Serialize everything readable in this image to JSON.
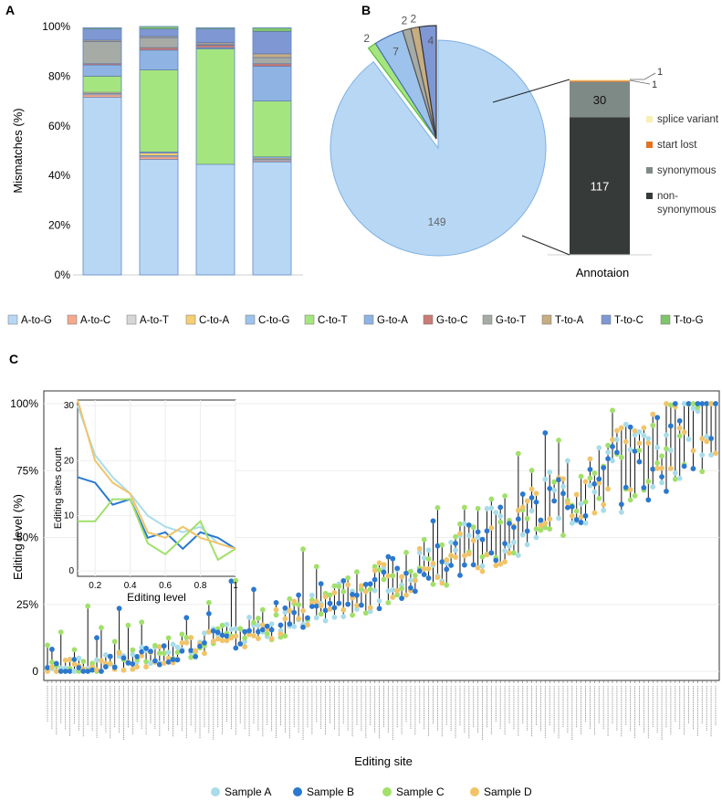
{
  "chart_data": [
    {
      "panel": "A",
      "type": "bar",
      "stacked": true,
      "ylabel": "Mismatches (%)",
      "ytick_labels": [
        "0%",
        "20%",
        "40%",
        "60%",
        "80%",
        "100%"
      ],
      "ylim": [
        0,
        100
      ],
      "categories": [
        "",
        "",
        "",
        ""
      ],
      "legend": {
        "placement": "bottom"
      },
      "series": [
        {
          "name": "A-to-G",
          "color": "#b7d7f4",
          "values": [
            71.5,
            46.5,
            44.5,
            45.5
          ]
        },
        {
          "name": "A-to-C",
          "color": "#f4a98d",
          "values": [
            1.0,
            1.0,
            0.0,
            0.5
          ]
        },
        {
          "name": "A-to-T",
          "color": "#d6d6d6",
          "values": [
            0.5,
            0.5,
            0.0,
            0.5
          ]
        },
        {
          "name": "C-to-A",
          "color": "#f5cf72",
          "values": [
            0.5,
            1.0,
            0.0,
            0.5
          ]
        },
        {
          "name": "C-to-G",
          "color": "#9dc3ec",
          "values": [
            0.0,
            0.5,
            0.0,
            0.5
          ]
        },
        {
          "name": "C-to-T",
          "color": "#a5e57f",
          "values": [
            6.5,
            33.0,
            46.5,
            22.5
          ]
        },
        {
          "name": "G-to-A",
          "color": "#8fb4e4",
          "values": [
            4.5,
            8.0,
            0.5,
            14.0
          ]
        },
        {
          "name": "G-to-C",
          "color": "#c97c76",
          "values": [
            0.5,
            1.0,
            1.0,
            1.0
          ]
        },
        {
          "name": "G-to-T",
          "color": "#a6aba6",
          "values": [
            9.0,
            4.0,
            0.5,
            2.5
          ]
        },
        {
          "name": "T-to-A",
          "color": "#c6ad82",
          "values": [
            0.5,
            0.5,
            0.5,
            1.5
          ]
        },
        {
          "name": "T-to-C",
          "color": "#7f98d4",
          "values": [
            4.5,
            3.0,
            5.5,
            9.0
          ]
        },
        {
          "name": "T-to-G",
          "color": "#80c56b",
          "values": [
            0.5,
            1.0,
            0.5,
            1.5
          ]
        }
      ]
    },
    {
      "panel": "B",
      "type": "pie",
      "slices": [
        {
          "label": "149",
          "value": 149,
          "color": "#b7d7f4"
        },
        {
          "label": "2",
          "value": 2,
          "color": "#a5e57f"
        },
        {
          "label": "7",
          "value": 7,
          "color": "#9dc3ec"
        },
        {
          "label": "2",
          "value": 2,
          "color": "#a6aba6"
        },
        {
          "label": "2",
          "value": 2,
          "color": "#c6ad82"
        },
        {
          "label": "4",
          "value": 4,
          "color": "#7f98d4"
        }
      ],
      "annotation_bar": {
        "xlabel": "Annotaion",
        "segments": [
          {
            "name": "non-synonymous",
            "value": 117,
            "label": "117",
            "color": "#363b3a"
          },
          {
            "name": "synonymous",
            "value": 30,
            "label": "30",
            "color": "#7e8a86"
          },
          {
            "name": "start lost",
            "value": 1,
            "label": "1",
            "color": "#e37222"
          },
          {
            "name": "splice variant",
            "value": 1,
            "label": "1",
            "color": "#f7efb4"
          }
        ],
        "legend": [
          {
            "name": "splice variant",
            "color": "#f7efb4"
          },
          {
            "name": "start lost",
            "color": "#e37222"
          },
          {
            "name": "synonymous",
            "color": "#7e8a86"
          },
          {
            "name": "non-\nsynonymous",
            "color": "#363b3a"
          }
        ]
      }
    },
    {
      "panel": "C",
      "type": "scatter",
      "xlabel": "Editing site",
      "ylabel": "Editing level (%)",
      "ytick_labels": [
        "0",
        "25%",
        "50%",
        "75%",
        "100%"
      ],
      "ylim": [
        0,
        100
      ],
      "n_sites": 150,
      "legend": {
        "placement": "bottom"
      },
      "series": [
        {
          "name": "Sample A",
          "color": "#a9dcea"
        },
        {
          "name": "Sample B",
          "color": "#2b78cf"
        },
        {
          "name": "Sample C",
          "color": "#a1e06a"
        },
        {
          "name": "Sample D",
          "color": "#f1c46a"
        }
      ],
      "inset": {
        "type": "line",
        "xlabel": "Editing level",
        "ylabel": "Editing sites count",
        "xtick_labels": [
          "0.2",
          "0.4",
          "0.6",
          "0.8",
          "1"
        ],
        "ytick_labels": [
          "0",
          "10",
          "20",
          "30"
        ],
        "xlim": [
          0.1,
          1.0
        ],
        "ylim": [
          -1,
          31
        ],
        "x": [
          0.1,
          0.2,
          0.3,
          0.4,
          0.5,
          0.6,
          0.7,
          0.8,
          0.9,
          1.0
        ],
        "series": [
          {
            "name": "Sample A",
            "values": [
              30,
              21,
              17,
              14,
              10,
              8,
              7,
              8,
              5,
              4
            ]
          },
          {
            "name": "Sample B",
            "values": [
              17,
              16,
              12,
              13,
              6,
              7,
              4,
              7,
              6,
              4
            ]
          },
          {
            "name": "Sample C",
            "values": [
              9,
              9,
              13,
              13,
              5,
              3,
              6,
              9,
              2,
              4
            ]
          },
          {
            "name": "Sample D",
            "values": [
              31,
              20,
              16,
              14,
              7,
              6,
              8,
              6,
              5,
              4
            ]
          }
        ]
      }
    }
  ],
  "panel_labels": {
    "a": "A",
    "b": "B",
    "c": "C"
  }
}
